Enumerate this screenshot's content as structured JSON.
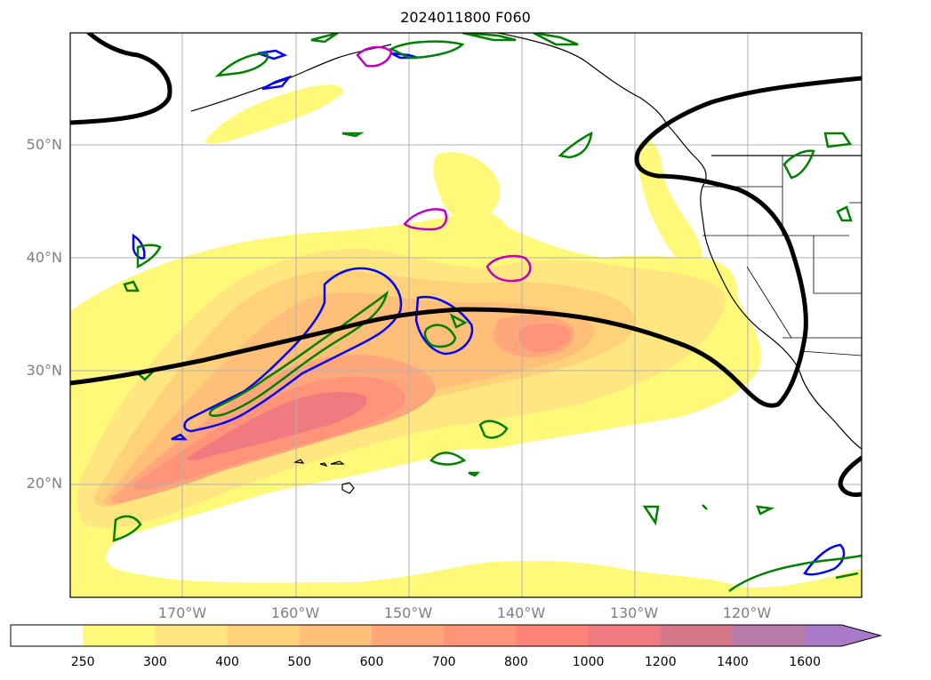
{
  "title": "2024011800 F060",
  "lat_labels": [
    {
      "text": "50°N",
      "lat": 50
    },
    {
      "text": "40°N",
      "lat": 40
    },
    {
      "text": "30°N",
      "lat": 30
    },
    {
      "text": "20°N",
      "lat": 20
    }
  ],
  "lon_labels": [
    {
      "text": "170°W",
      "lon": -170
    },
    {
      "text": "160°W",
      "lon": -160
    },
    {
      "text": "150°W",
      "lon": -150
    },
    {
      "text": "140°W",
      "lon": -140
    },
    {
      "text": "130°W",
      "lon": -130
    },
    {
      "text": "120°W",
      "lon": -120
    }
  ],
  "colorbar": {
    "levels": [
      "250",
      "300",
      "400",
      "500",
      "600",
      "700",
      "800",
      "1000",
      "1200",
      "1400",
      "1600"
    ],
    "colors": [
      "#ffffff",
      "#fff97a",
      "#ffe680",
      "#ffd27a",
      "#ffbf78",
      "#ffa77a",
      "#ff9478",
      "#ff8378",
      "#f07a80",
      "#d4788a",
      "#b87aa8",
      "#a87ac8"
    ]
  },
  "colors": {
    "shade_1": "#fff97a",
    "shade_2": "#ffe680",
    "shade_3": "#ffd27a",
    "shade_4": "#ffbf78",
    "shade_5": "#ffa77a",
    "shade_6": "#ff9478",
    "shade_7": "#f07a80",
    "blue_contour": "#0000ff",
    "green_contour": "#008000",
    "magenta_contour": "#c000c0",
    "jet_line": "#000000"
  }
}
